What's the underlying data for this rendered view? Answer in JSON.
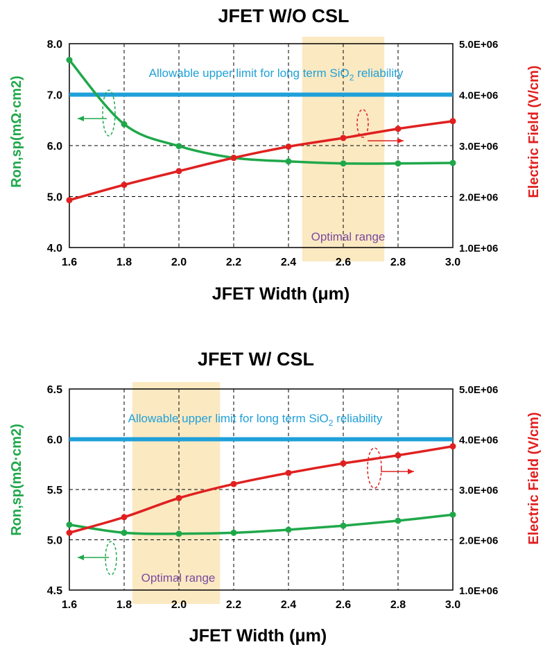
{
  "chart_data": [
    {
      "type": "line",
      "title": "JFET W/O  CSL",
      "xlabel": "JFET Width (μm)",
      "ylabel_left": "Ron,sp(mΩ·cm2)",
      "ylabel_right": "Electric Field (V/cm)",
      "x": [
        1.6,
        1.8,
        2.0,
        2.2,
        2.4,
        2.6,
        2.8,
        3.0
      ],
      "xlim": [
        1.6,
        3.0
      ],
      "x_ticks": [
        "1.6",
        "1.8",
        "2.0",
        "2.2",
        "2.4",
        "2.6",
        "2.8",
        "3.0"
      ],
      "ylim_left": [
        4.0,
        8.0
      ],
      "y_ticks_left": [
        "4.0",
        "5.0",
        "6.0",
        "7.0",
        "8.0"
      ],
      "ylim_right": [
        1000000,
        5000000
      ],
      "y_ticks_right": [
        "1.0E+06",
        "2.0E+06",
        "3.0E+06",
        "4.0E+06",
        "5.0E+06"
      ],
      "series": [
        {
          "name": "Ron,sp",
          "axis": "left",
          "color": "#1fa84a",
          "values": [
            7.68,
            6.42,
            5.99,
            5.76,
            5.69,
            5.65,
            5.65,
            5.66
          ]
        },
        {
          "name": "Electric Field",
          "axis": "right",
          "color": "#e02020",
          "values": [
            1930000,
            2230000,
            2500000,
            2760000,
            2980000,
            3150000,
            3330000,
            3480000
          ]
        }
      ],
      "limit_line": {
        "label_prefix": "Allowable upper limit for long term SiO",
        "label_sub": "2",
        "label_suffix": " reliability",
        "value": 4000000,
        "color": "#1fa0d8"
      },
      "optimal_range": {
        "label": "Optimal  range",
        "x_from": 2.45,
        "x_to": 2.75
      }
    },
    {
      "type": "line",
      "title": "JFET W/  CSL",
      "xlabel": "JFET Width (μm)",
      "ylabel_left": "Ron,sp(mΩ·cm2)",
      "ylabel_right": "Electric Field (V/cm)",
      "x": [
        1.6,
        1.8,
        2.0,
        2.2,
        2.4,
        2.6,
        2.8,
        3.0
      ],
      "xlim": [
        1.6,
        3.0
      ],
      "x_ticks": [
        "1.6",
        "1.8",
        "2.0",
        "2.2",
        "2.4",
        "2.6",
        "2.8",
        "3.0"
      ],
      "ylim_left": [
        4.5,
        6.5
      ],
      "y_ticks_left": [
        "4.5",
        "5.0",
        "5.5",
        "6.0",
        "6.5"
      ],
      "ylim_right": [
        1000000,
        5000000
      ],
      "y_ticks_right": [
        "1.0E+06",
        "2.0E+06",
        "3.0E+06",
        "4.0E+06",
        "5.0E+06"
      ],
      "series": [
        {
          "name": "Ron,sp",
          "axis": "left",
          "color": "#1fa84a",
          "values": [
            5.15,
            5.07,
            5.06,
            5.07,
            5.1,
            5.14,
            5.19,
            5.25
          ]
        },
        {
          "name": "Electric Field",
          "axis": "right",
          "color": "#e02020",
          "values": [
            2140000,
            2450000,
            2830000,
            3110000,
            3330000,
            3520000,
            3680000,
            3860000
          ]
        }
      ],
      "limit_line": {
        "label_prefix": "Allowable upper limit for long term SiO",
        "label_sub": "2",
        "label_suffix": " reliability",
        "value": 4000000,
        "color": "#1fa0d8"
      },
      "optimal_range": {
        "label": "Optimal  range",
        "x_from": 1.83,
        "x_to": 2.15
      }
    }
  ]
}
